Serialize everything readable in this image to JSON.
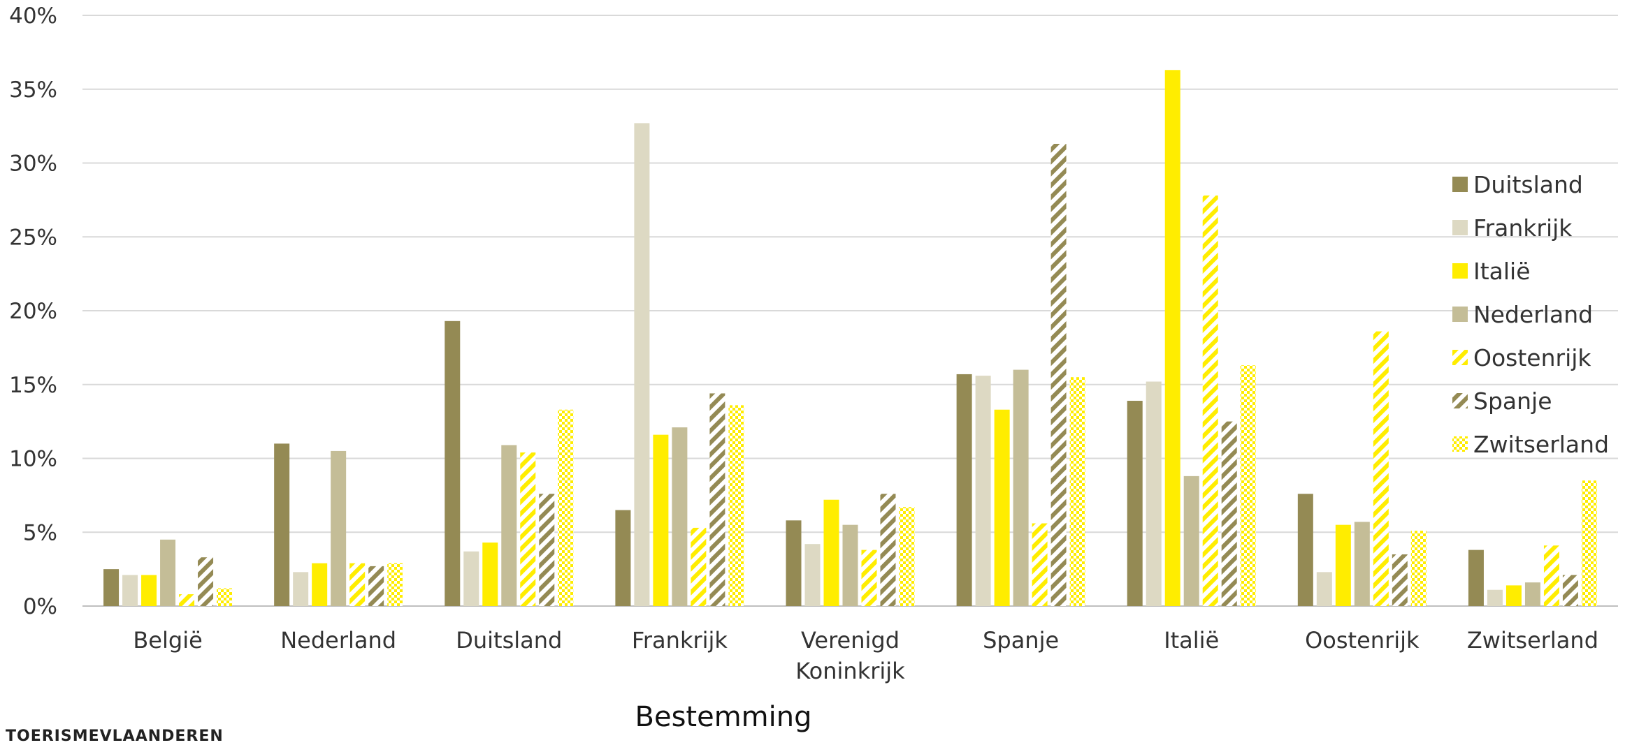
{
  "chart_data": {
    "type": "bar",
    "title": "",
    "xlabel": "Bestemming",
    "ylabel": "",
    "ylim": [
      0,
      40
    ],
    "yticks": [
      "0%",
      "5%",
      "10%",
      "15%",
      "20%",
      "25%",
      "30%",
      "35%",
      "40%"
    ],
    "grid": true,
    "legend_position": "right",
    "categories": [
      "België",
      "Nederland",
      "Duitsland",
      "Frankrijk",
      "Verenigd Koninkrijk",
      "Spanje",
      "Italië",
      "Oostenrijk",
      "Zwitserland"
    ],
    "category_lines": [
      [
        "België"
      ],
      [
        "Nederland"
      ],
      [
        "Duitsland"
      ],
      [
        "Frankrijk"
      ],
      [
        "Verenigd",
        "Koninkrijk"
      ],
      [
        "Spanje"
      ],
      [
        "Italië"
      ],
      [
        "Oostenrijk"
      ],
      [
        "Zwitserland"
      ]
    ],
    "series": [
      {
        "name": "Duitsland",
        "color": "#948a54",
        "pattern": "solid",
        "values": [
          2.5,
          11.0,
          19.3,
          6.5,
          5.8,
          15.7,
          13.9,
          7.6,
          3.8
        ]
      },
      {
        "name": "Frankrijk",
        "color": "#ddd9c3",
        "pattern": "solid",
        "values": [
          2.1,
          2.3,
          3.7,
          32.7,
          4.2,
          15.6,
          15.2,
          2.3,
          1.1
        ]
      },
      {
        "name": "Italië",
        "color": "#ffed00",
        "pattern": "solid",
        "values": [
          2.1,
          2.9,
          4.3,
          11.6,
          7.2,
          13.3,
          36.3,
          5.5,
          1.4
        ]
      },
      {
        "name": "Nederland",
        "color": "#c4bd97",
        "pattern": "solid",
        "values": [
          4.5,
          10.5,
          10.9,
          12.1,
          5.5,
          16.0,
          8.8,
          5.7,
          1.6
        ]
      },
      {
        "name": "Oostenrijk",
        "color": "#ffed00",
        "pattern": "stripes",
        "values": [
          0.8,
          2.9,
          10.4,
          5.3,
          3.8,
          5.6,
          27.8,
          18.6,
          4.1
        ]
      },
      {
        "name": "Spanje",
        "color": "#948a54",
        "pattern": "stripes",
        "values": [
          3.3,
          2.7,
          7.6,
          14.4,
          7.6,
          31.3,
          12.5,
          3.5,
          2.1
        ]
      },
      {
        "name": "Zwitserland",
        "color": "#ffed00",
        "pattern": "checker",
        "values": [
          1.2,
          2.9,
          13.3,
          13.6,
          6.7,
          15.5,
          16.3,
          5.1,
          8.5
        ]
      }
    ]
  },
  "footer": {
    "text": "TOERISMEVLAANDEREN"
  }
}
